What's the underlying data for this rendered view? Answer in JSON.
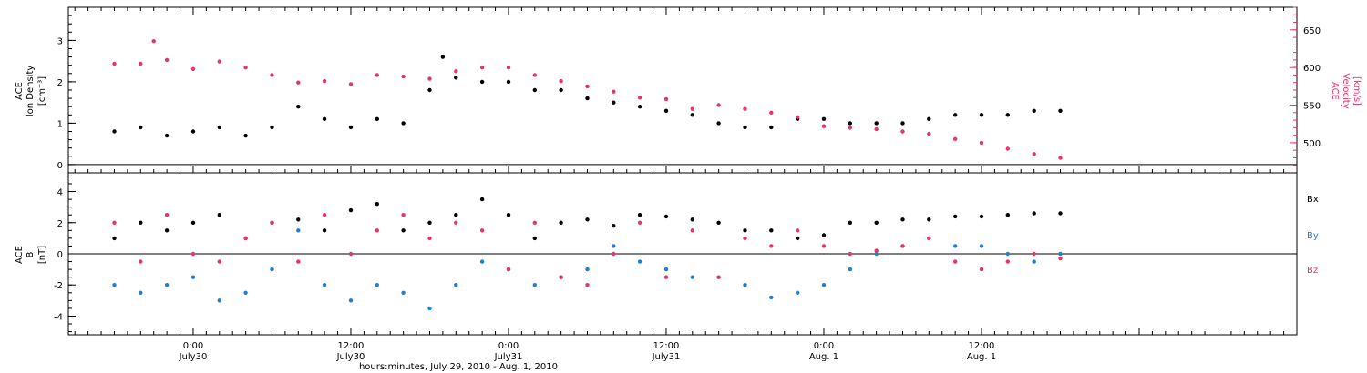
{
  "chart_data": [
    {
      "type": "scatter",
      "panel": "top",
      "ylabel_left": [
        "ACE",
        "Ion Density",
        "[cm⁻³]"
      ],
      "ylabel_right": [
        "ACE",
        "Velocity",
        "[km/s]"
      ],
      "yticks_left": [
        0,
        1,
        2,
        3
      ],
      "ylim_left": [
        -0.2,
        3.8
      ],
      "yticks_right": [
        500,
        550,
        600,
        650
      ],
      "ylim_right": [
        460,
        680
      ],
      "colors": {
        "density": "#000000",
        "velocity": "#e8336d"
      },
      "series": [
        {
          "axis": "left",
          "color": "#000000",
          "x": [
            -6,
            -4,
            -2,
            0,
            2,
            4,
            6,
            8,
            10,
            12,
            14,
            16,
            18,
            19,
            20,
            22,
            24,
            26,
            28,
            30,
            32,
            34,
            36,
            38,
            40,
            42,
            44,
            46,
            48,
            50,
            52,
            54,
            56,
            58,
            60,
            62,
            64,
            66
          ],
          "y": [
            0.8,
            0.9,
            0.7,
            0.8,
            0.9,
            0.7,
            0.9,
            1.4,
            1.1,
            0.9,
            1.1,
            1.0,
            1.8,
            2.6,
            2.1,
            2.0,
            2.0,
            1.8,
            1.8,
            1.6,
            1.5,
            1.4,
            1.3,
            1.2,
            1.0,
            0.9,
            0.9,
            1.1,
            1.1,
            1.0,
            1.0,
            1.0,
            1.1,
            1.2,
            1.2,
            1.2,
            1.3,
            1.3
          ]
        },
        {
          "axis": "right",
          "color": "#e8336d",
          "x": [
            -6,
            -4,
            -3,
            -2,
            0,
            2,
            4,
            6,
            8,
            10,
            12,
            14,
            16,
            18,
            20,
            22,
            24,
            26,
            28,
            30,
            32,
            34,
            36,
            38,
            40,
            42,
            44,
            46,
            48,
            50,
            52,
            54,
            56,
            58,
            60,
            62,
            64,
            66
          ],
          "y": [
            605,
            605,
            635,
            610,
            598,
            608,
            600,
            590,
            580,
            582,
            578,
            590,
            588,
            585,
            595,
            600,
            600,
            590,
            582,
            575,
            568,
            560,
            558,
            545,
            550,
            545,
            540,
            534,
            522,
            520,
            518,
            515,
            512,
            505,
            500,
            492,
            485,
            480
          ]
        }
      ]
    },
    {
      "type": "scatter",
      "panel": "bottom",
      "ylabel": [
        "ACE",
        "B",
        "[nT]"
      ],
      "yticks": [
        -4,
        -2,
        0,
        2,
        4
      ],
      "ylim": [
        -5.2,
        5.2
      ],
      "legend": [
        "Bx",
        "By",
        "Bz"
      ],
      "colors": {
        "Bx": "#000000",
        "By": "#1e7fd6",
        "Bz": "#e8336d"
      },
      "series": [
        {
          "name": "Bx",
          "color": "#000000",
          "x": [
            -6,
            -4,
            -2,
            0,
            2,
            4,
            6,
            8,
            10,
            12,
            14,
            16,
            18,
            20,
            22,
            24,
            26,
            28,
            30,
            32,
            34,
            36,
            38,
            40,
            42,
            44,
            46,
            48,
            50,
            52,
            54,
            56,
            58,
            60,
            62,
            64,
            66
          ],
          "y": [
            1.0,
            2.0,
            1.5,
            2.0,
            2.5,
            1.0,
            2.0,
            2.2,
            1.5,
            2.8,
            3.2,
            1.5,
            2.0,
            2.5,
            3.5,
            2.5,
            1.0,
            2.0,
            2.2,
            1.8,
            2.5,
            2.4,
            2.2,
            2.0,
            1.5,
            1.5,
            1.0,
            1.2,
            2.0,
            2.0,
            2.2,
            2.2,
            2.4,
            2.4,
            2.5,
            2.6,
            2.6
          ]
        },
        {
          "name": "By",
          "color": "#1e7fd6",
          "x": [
            -6,
            -4,
            -2,
            0,
            2,
            4,
            6,
            8,
            10,
            12,
            14,
            16,
            18,
            20,
            22,
            24,
            26,
            28,
            30,
            32,
            34,
            36,
            38,
            40,
            42,
            44,
            46,
            48,
            50,
            52,
            54,
            56,
            58,
            60,
            62,
            64,
            66
          ],
          "y": [
            -2.0,
            -2.5,
            -2.0,
            -1.5,
            -3.0,
            -2.5,
            -1.0,
            1.5,
            -2.0,
            -3.0,
            -2.0,
            -2.5,
            -3.5,
            -2.0,
            -0.5,
            -1.0,
            -2.0,
            -1.5,
            -1.0,
            0.5,
            -0.5,
            -1.0,
            -1.5,
            -1.5,
            -2.0,
            -2.8,
            -2.5,
            -2.0,
            -1.0,
            0.0,
            0.5,
            1.0,
            0.5,
            0.5,
            0.0,
            -0.5,
            0.0
          ]
        },
        {
          "name": "Bz",
          "color": "#e8336d",
          "x": [
            -6,
            -4,
            -2,
            0,
            2,
            4,
            6,
            8,
            10,
            12,
            14,
            16,
            18,
            20,
            22,
            24,
            26,
            28,
            30,
            32,
            34,
            36,
            38,
            40,
            42,
            44,
            46,
            48,
            50,
            52,
            54,
            56,
            58,
            60,
            62,
            64,
            66
          ],
          "y": [
            2.0,
            -0.5,
            2.5,
            0.0,
            -0.5,
            1.0,
            2.0,
            -0.5,
            2.5,
            0.0,
            1.5,
            2.5,
            1.0,
            2.0,
            1.5,
            -1.0,
            2.0,
            -1.5,
            -2.0,
            0.0,
            2.0,
            -1.5,
            1.5,
            -1.5,
            1.0,
            0.5,
            1.5,
            0.5,
            0.0,
            0.2,
            0.5,
            1.0,
            -0.5,
            -1.0,
            -0.5,
            0.0,
            -0.3
          ]
        }
      ]
    }
  ],
  "x_axis": {
    "xlim": [
      -9.5,
      84
    ],
    "major_ticks": [
      0,
      12,
      24,
      36,
      48,
      60
    ],
    "tick_labels": [
      {
        "time": "0:00",
        "date": "July30"
      },
      {
        "time": "12:00",
        "date": "July30"
      },
      {
        "time": "0:00",
        "date": "July31"
      },
      {
        "time": "12:00",
        "date": "July31"
      },
      {
        "time": "0:00",
        "date": "Aug. 1"
      },
      {
        "time": "12:00",
        "date": "Aug. 1"
      }
    ],
    "title": "hours:minutes, July 29, 2010 - Aug. 1, 2010"
  }
}
